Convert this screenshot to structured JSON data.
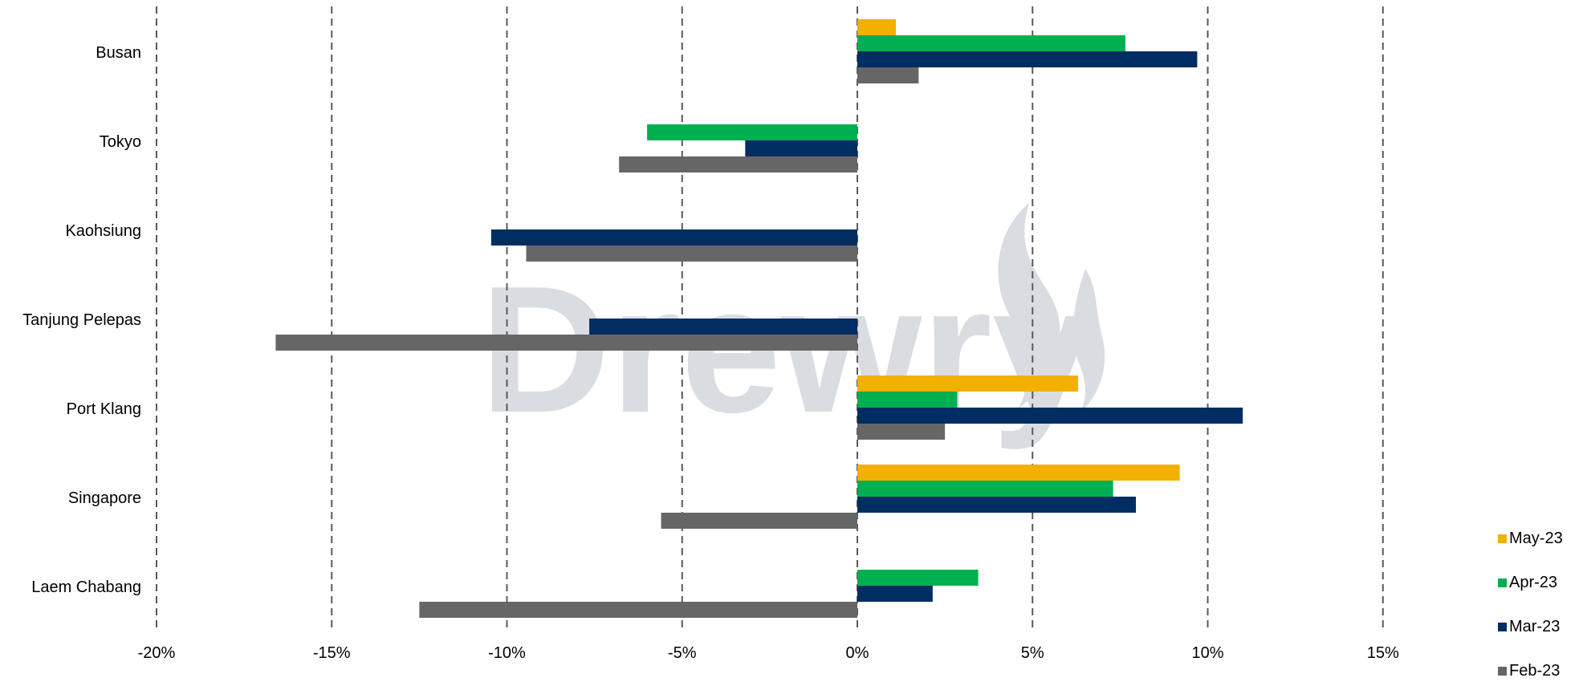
{
  "watermark": "Drewry",
  "chart_data": {
    "type": "bar",
    "orientation": "horizontal",
    "categories": [
      "Busan",
      "Tokyo",
      "Kaohsiung",
      "Tanjung Pelepas",
      "Port Klang",
      "Singapore",
      "Laem Chabang"
    ],
    "series": [
      {
        "name": "May-23",
        "color": "#f2b000",
        "values": [
          1.1,
          null,
          null,
          null,
          6.3,
          9.2,
          null
        ]
      },
      {
        "name": "Apr-23",
        "color": "#00b050",
        "values": [
          7.65,
          -6.0,
          null,
          null,
          2.85,
          7.3,
          3.45
        ]
      },
      {
        "name": "Mar-23",
        "color": "#002d62",
        "values": [
          9.7,
          -3.2,
          -10.45,
          -7.65,
          11.0,
          7.95,
          2.15
        ]
      },
      {
        "name": "Feb-23",
        "color": "#666666",
        "values": [
          1.75,
          -6.8,
          -9.45,
          -16.6,
          2.5,
          -5.6,
          -12.5
        ]
      }
    ],
    "xlim": [
      -20,
      20
    ],
    "xticks": [
      -20,
      -15,
      -10,
      -5,
      0,
      5,
      10,
      15
    ],
    "xtick_labels": [
      "-20%",
      "-15%",
      "-10%",
      "-5%",
      "0%",
      "5%",
      "10%",
      "15%"
    ],
    "grid": "vertical dashed",
    "legend_position": "bottom-right",
    "title": "",
    "xlabel": "",
    "ylabel": ""
  }
}
